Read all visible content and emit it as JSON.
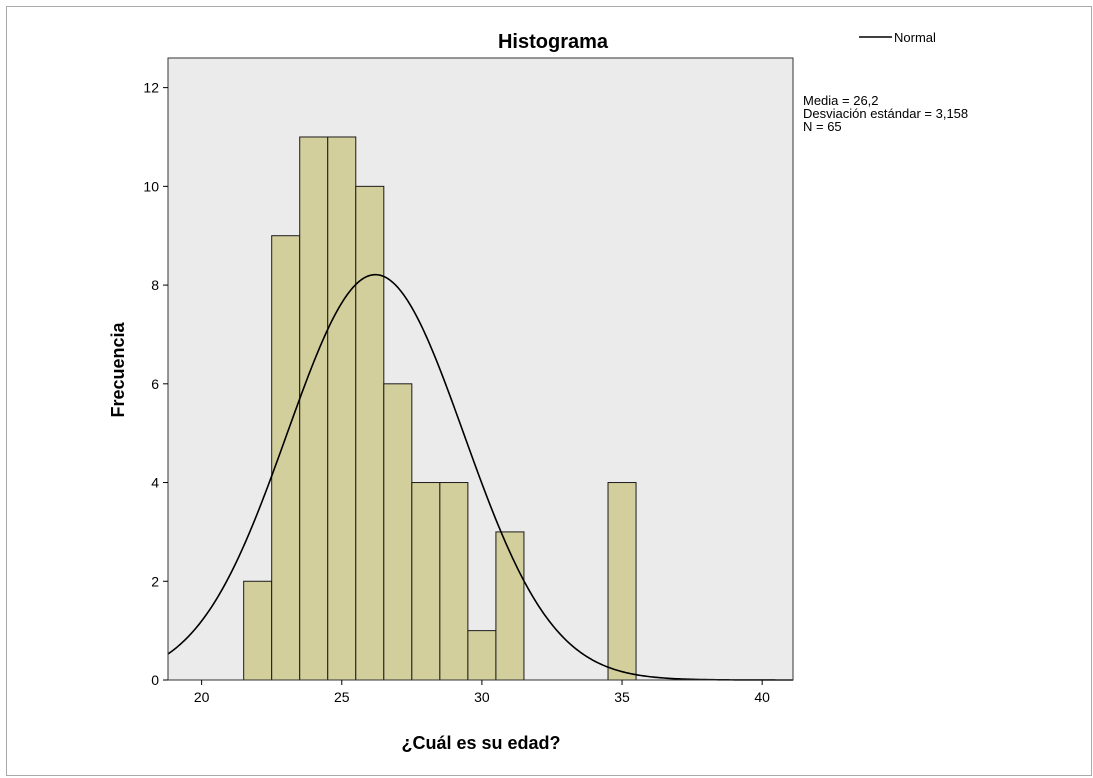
{
  "chart_data": {
    "type": "bar",
    "title": "Histograma",
    "xlabel": "¿Cuál es su edad?",
    "ylabel": "Frecuencia",
    "xlim": [
      18.8,
      41.1
    ],
    "ylim": [
      0,
      12.6
    ],
    "x_ticks": [
      20,
      25,
      30,
      35,
      40
    ],
    "y_ticks": [
      0,
      2,
      4,
      6,
      8,
      10,
      12
    ],
    "bin_width": 1,
    "bins": [
      {
        "x": 22,
        "count": 2
      },
      {
        "x": 23,
        "count": 9
      },
      {
        "x": 24,
        "count": 11
      },
      {
        "x": 25,
        "count": 11
      },
      {
        "x": 26,
        "count": 10
      },
      {
        "x": 27,
        "count": 6
      },
      {
        "x": 28,
        "count": 4
      },
      {
        "x": 29,
        "count": 4
      },
      {
        "x": 30,
        "count": 1
      },
      {
        "x": 31,
        "count": 3
      },
      {
        "x": 35,
        "count": 4
      }
    ],
    "normal_curve": {
      "name": "Normal",
      "mean": 26.2,
      "sd": 3.158,
      "n": 65
    },
    "stats_lines": [
      "Media = 26,2",
      "Desviación estándar = 3,158",
      "N = 65"
    ],
    "legend": {
      "label": "Normal",
      "position": "top-right"
    },
    "colors": {
      "bar_fill": "#d3cf9c",
      "bar_stroke": "#1a1a1a",
      "plot_bg": "#ebebeb",
      "curve": "#000000"
    },
    "grid": false
  }
}
